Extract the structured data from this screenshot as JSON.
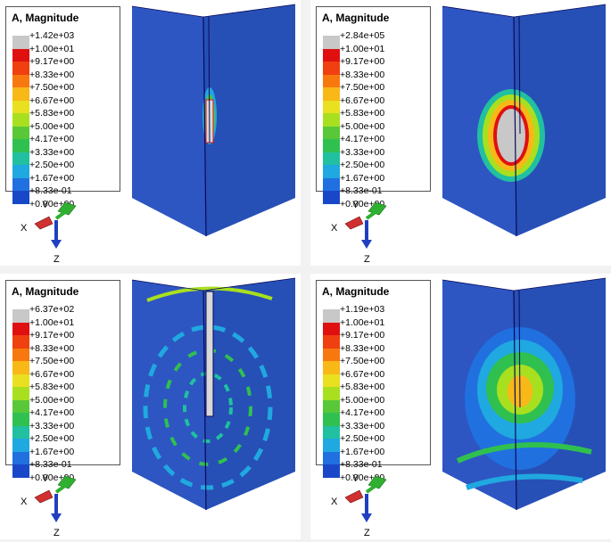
{
  "panels": [
    {
      "legend": {
        "title": "A, Magnitude",
        "labels": [
          "+1.42e+03",
          "+1.00e+01",
          "+9.17e+00",
          "+8.33e+00",
          "+7.50e+00",
          "+6.67e+00",
          "+5.83e+00",
          "+5.00e+00",
          "+4.17e+00",
          "+3.33e+00",
          "+2.50e+00",
          "+1.67e+00",
          "+8.33e-01",
          "+0.00e+00"
        ]
      },
      "axes": {
        "y": "Y",
        "x": "X",
        "z": "Z"
      }
    },
    {
      "legend": {
        "title": "A, Magnitude",
        "labels": [
          "+2.84e+05",
          "+1.00e+01",
          "+9.17e+00",
          "+8.33e+00",
          "+7.50e+00",
          "+6.67e+00",
          "+5.83e+00",
          "+5.00e+00",
          "+4.17e+00",
          "+3.33e+00",
          "+2.50e+00",
          "+1.67e+00",
          "+8.33e-01",
          "+0.00e+00"
        ]
      },
      "axes": {
        "y": "Y",
        "x": "X",
        "z": "Z"
      }
    },
    {
      "legend": {
        "title": "A, Magnitude",
        "labels": [
          "+6.37e+02",
          "+1.00e+01",
          "+9.17e+00",
          "+8.33e+00",
          "+7.50e+00",
          "+6.67e+00",
          "+5.83e+00",
          "+5.00e+00",
          "+4.17e+00",
          "+3.33e+00",
          "+2.50e+00",
          "+1.67e+00",
          "+8.33e-01",
          "+0.00e+00"
        ]
      },
      "axes": {
        "y": "Y",
        "x": "X",
        "z": "Z"
      }
    },
    {
      "legend": {
        "title": "A, Magnitude",
        "labels": [
          "+1.19e+03",
          "+1.00e+01",
          "+9.17e+00",
          "+8.33e+00",
          "+7.50e+00",
          "+6.67e+00",
          "+5.83e+00",
          "+5.00e+00",
          "+4.17e+00",
          "+3.33e+00",
          "+2.50e+00",
          "+1.67e+00",
          "+8.33e-01",
          "+0.00e+00"
        ]
      },
      "axes": {
        "y": "Y",
        "x": "X",
        "z": "Z"
      }
    }
  ],
  "colors": {
    "scale": [
      "#c8c8c8",
      "#e01010",
      "#f04010",
      "#f87810",
      "#f8b818",
      "#e8e020",
      "#a8e020",
      "#58c838",
      "#30c050",
      "#20c0a0",
      "#20a8e0",
      "#2070e0",
      "#1848c8"
    ],
    "model_base": "#2850b8",
    "edge": "#0a0a5a",
    "axis_x": "#d03030",
    "axis_y": "#30b030",
    "axis_z": "#2040c0"
  }
}
